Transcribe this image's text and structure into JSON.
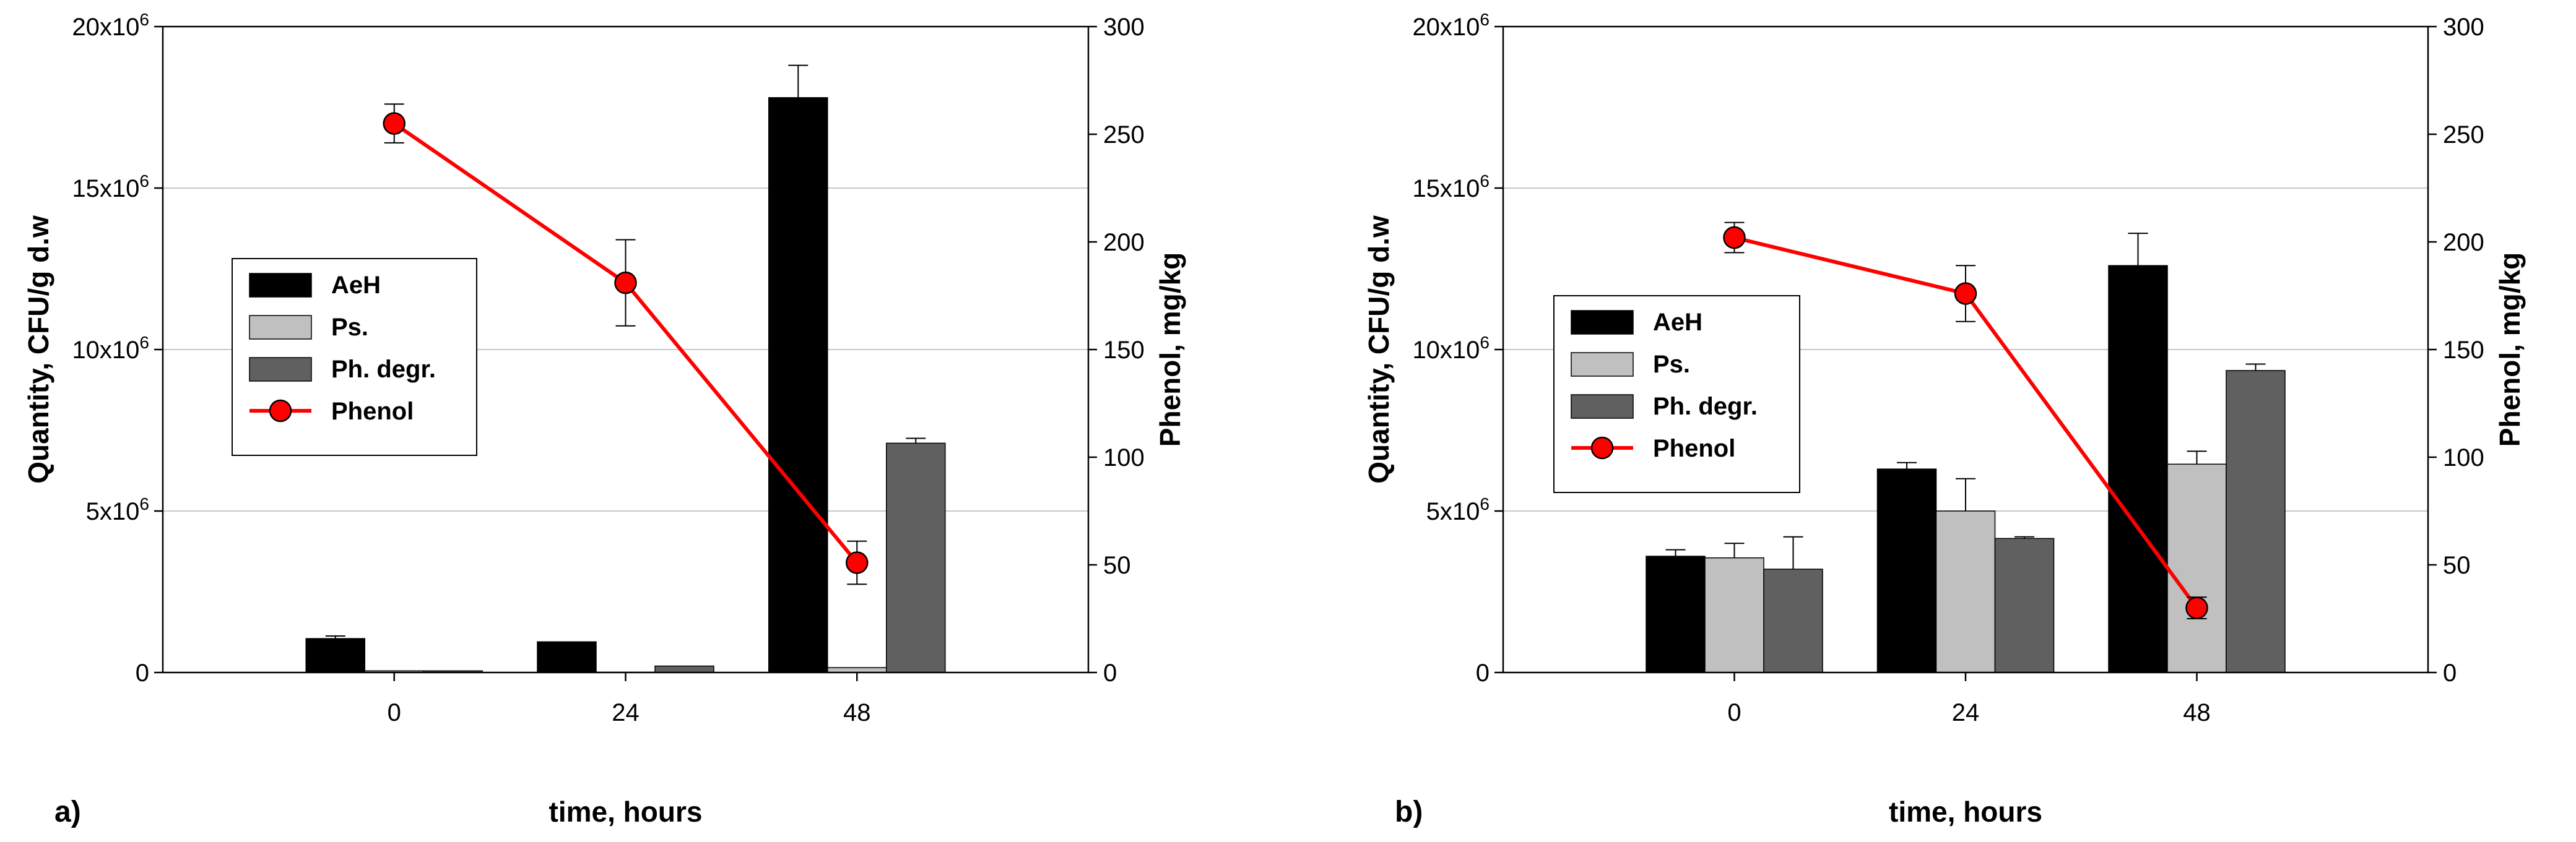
{
  "chart_data": [
    {
      "type": "bar",
      "panel_label": "a)",
      "categories": [
        "0",
        "24",
        "48"
      ],
      "xlabel": "time, hours",
      "ylabel_left": "Quantity, CFU/g d.w",
      "ylabel_right": "Phenol, mg/kg",
      "ylim_left": [
        0,
        20000000
      ],
      "ylim_right": [
        0,
        300
      ],
      "left_ticks": [
        {
          "v": 0,
          "base": "0",
          "exp": ""
        },
        {
          "v": 5000000,
          "base": "5x10",
          "exp": "6"
        },
        {
          "v": 10000000,
          "base": "10x10",
          "exp": "6"
        },
        {
          "v": 15000000,
          "base": "15x10",
          "exp": "6"
        },
        {
          "v": 20000000,
          "base": "20x10",
          "exp": "6"
        }
      ],
      "right_ticks": [
        "0",
        "50",
        "100",
        "150",
        "200",
        "250",
        "300"
      ],
      "grid": true,
      "legend_position": "left-middle",
      "series": [
        {
          "name": "AeH",
          "color": "#000000",
          "values": [
            1050000,
            950000,
            17800000
          ],
          "errors": [
            80000,
            0,
            1000000
          ]
        },
        {
          "name": "Ps.",
          "color": "#c0c0c0",
          "values": [
            50000,
            10000,
            150000
          ],
          "errors": [
            0,
            0,
            0
          ]
        },
        {
          "name": "Ph. degr.",
          "color": "#606060",
          "values": [
            50000,
            200000,
            7100000
          ],
          "errors": [
            0,
            0,
            150000
          ]
        }
      ],
      "line": {
        "name": "Phenol",
        "color": "#ff0000",
        "axis": "right",
        "values": [
          255,
          181,
          51
        ],
        "errors": [
          9,
          20,
          10
        ]
      }
    },
    {
      "type": "bar",
      "panel_label": "b)",
      "categories": [
        "0",
        "24",
        "48"
      ],
      "xlabel": "time, hours",
      "ylabel_left": "Quantity, CFU/g d.w",
      "ylabel_right": "Phenol, mg/kg",
      "ylim_left": [
        0,
        20000000
      ],
      "ylim_right": [
        0,
        300
      ],
      "left_ticks": [
        {
          "v": 0,
          "base": "0",
          "exp": ""
        },
        {
          "v": 5000000,
          "base": "5x10",
          "exp": "6"
        },
        {
          "v": 10000000,
          "base": "10x10",
          "exp": "6"
        },
        {
          "v": 15000000,
          "base": "15x10",
          "exp": "6"
        },
        {
          "v": 20000000,
          "base": "20x10",
          "exp": "6"
        }
      ],
      "right_ticks": [
        "0",
        "50",
        "100",
        "150",
        "200",
        "250",
        "300"
      ],
      "grid": true,
      "legend_position": "left-middle",
      "series": [
        {
          "name": "AeH",
          "color": "#000000",
          "values": [
            3600000,
            6300000,
            12600000
          ],
          "errors": [
            200000,
            200000,
            1000000
          ]
        },
        {
          "name": "Ps.",
          "color": "#c0c0c0",
          "values": [
            3550000,
            5000000,
            6450000
          ],
          "errors": [
            450000,
            1000000,
            400000
          ]
        },
        {
          "name": "Ph. degr.",
          "color": "#606060",
          "values": [
            3200000,
            4150000,
            9350000
          ],
          "errors": [
            1000000,
            50000,
            200000
          ]
        }
      ],
      "line": {
        "name": "Phenol",
        "color": "#ff0000",
        "axis": "right",
        "values": [
          202,
          176,
          30
        ],
        "errors": [
          7,
          13,
          5
        ]
      }
    }
  ]
}
